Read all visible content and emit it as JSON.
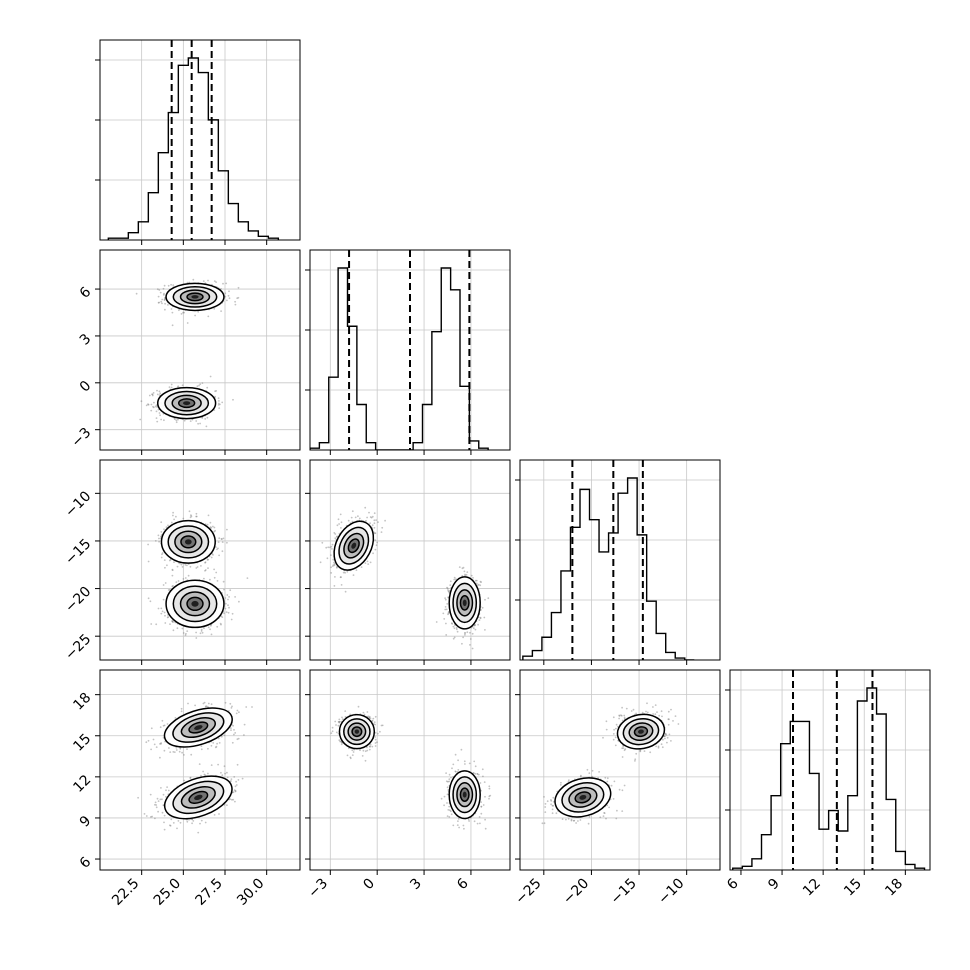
{
  "chart_data": {
    "type": "corner",
    "description_kind": "corner plot of 4 parameters: marginal histograms on the diagonal, 2-D scatter + density contours below",
    "grid": true,
    "axis_ticks": [
      {
        "axis": "param1",
        "ticks": [
          22.5,
          25.0,
          27.5,
          30.0
        ],
        "labels": [
          "22.5",
          "25.0",
          "27.5",
          "30.0"
        ]
      },
      {
        "axis": "param2",
        "ticks": [
          -3,
          0,
          3,
          6
        ],
        "labels": [
          "−3",
          "0",
          "3",
          "6"
        ]
      },
      {
        "axis": "param3",
        "ticks": [
          -25,
          -20,
          -15,
          -10
        ],
        "labels": [
          "−25",
          "−20",
          "−15",
          "−10"
        ]
      },
      {
        "axis": "param4",
        "ticks": [
          6,
          9,
          12,
          15,
          18
        ],
        "labels": [
          "6",
          "9",
          "12",
          "15",
          "18"
        ]
      }
    ],
    "axis_ranges": [
      [
        20.0,
        32.0
      ],
      [
        -4.3,
        8.5
      ],
      [
        -27.5,
        -6.5
      ],
      [
        5.2,
        19.8
      ]
    ],
    "histograms": [
      {
        "param": 1,
        "bin_edges_start": 20.5,
        "bin_width": 0.6,
        "counts": [
          1,
          1,
          4,
          10,
          26,
          48,
          70,
          96,
          100,
          92,
          66,
          38,
          20,
          10,
          5,
          2,
          1
        ],
        "quantiles": [
          24.3,
          25.5,
          26.7
        ]
      },
      {
        "param": 2,
        "bin_edges_start": -4.3,
        "bin_width": 0.6,
        "counts": [
          1,
          4,
          40,
          100,
          68,
          25,
          4,
          0,
          0,
          0,
          0,
          4,
          25,
          65,
          100,
          88,
          35,
          5,
          1
        ],
        "quantiles": [
          -1.8,
          2.1,
          5.9
        ]
      },
      {
        "param": 3,
        "bin_edges_start": -27.2,
        "bin_width": 1.0,
        "counts": [
          2,
          5,
          12,
          25,
          47,
          70,
          90,
          74,
          57,
          67,
          88,
          96,
          66,
          31,
          14,
          4,
          1,
          0
        ],
        "quantiles": [
          -22.0,
          -17.7,
          -14.6
        ]
      },
      {
        "param": 4,
        "bin_edges_start": 5.4,
        "bin_width": 0.7,
        "counts": [
          1,
          2,
          6,
          19,
          40,
          68,
          80,
          80,
          52,
          22,
          32,
          21,
          40,
          91,
          98,
          84,
          38,
          10,
          3,
          1
        ],
        "quantiles": [
          9.8,
          13.0,
          15.6
        ]
      }
    ],
    "density_clusters": [
      {
        "pair": [
          1,
          2
        ],
        "centers": [
          [
            25.7,
            5.5
          ],
          [
            25.2,
            -1.3
          ]
        ],
        "spread": [
          [
            1.4,
            0.7
          ],
          [
            1.4,
            0.8
          ]
        ],
        "rotation_deg": [
          0,
          0
        ]
      },
      {
        "pair": [
          1,
          3
        ],
        "centers": [
          [
            25.3,
            -15.1
          ],
          [
            25.7,
            -21.6
          ]
        ],
        "spread": [
          [
            1.3,
            1.8
          ],
          [
            1.4,
            2.0
          ]
        ],
        "rotation_deg": [
          0,
          0
        ]
      },
      {
        "pair": [
          1,
          4
        ],
        "centers": [
          [
            25.9,
            15.6
          ],
          [
            25.9,
            10.5
          ]
        ],
        "spread": [
          [
            1.7,
            1.0
          ],
          [
            1.7,
            1.1
          ]
        ],
        "rotation_deg": [
          18,
          20
        ]
      },
      {
        "pair": [
          2,
          3
        ],
        "centers": [
          [
            -1.5,
            -15.5
          ],
          [
            5.6,
            -21.5
          ]
        ],
        "spread": [
          [
            0.9,
            2.2
          ],
          [
            0.8,
            2.2
          ]
        ],
        "rotation_deg": [
          -28,
          0
        ]
      },
      {
        "pair": [
          2,
          4
        ],
        "centers": [
          [
            -1.3,
            15.3
          ],
          [
            5.6,
            10.7
          ]
        ],
        "spread": [
          [
            0.9,
            1.0
          ],
          [
            0.8,
            1.4
          ]
        ],
        "rotation_deg": [
          0,
          0
        ]
      },
      {
        "pair": [
          3,
          4
        ],
        "centers": [
          [
            -14.8,
            15.3
          ],
          [
            -20.9,
            10.5
          ]
        ],
        "spread": [
          [
            2.0,
            1.0
          ],
          [
            2.4,
            1.1
          ]
        ],
        "rotation_deg": [
          10,
          15
        ]
      }
    ],
    "title": "",
    "xlabel": "",
    "ylabel": ""
  }
}
